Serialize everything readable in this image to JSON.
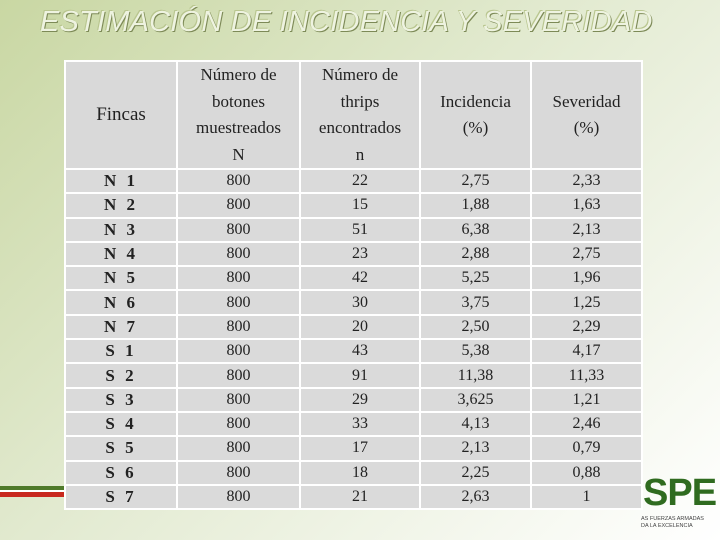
{
  "slide": {
    "title": "ESTIMACIÓN DE INCIDENCIA Y SEVERIDAD"
  },
  "table": {
    "headers": [
      [
        "Fincas"
      ],
      [
        "Número de",
        "botones",
        "muestreados",
        "N"
      ],
      [
        "Número de",
        "thrips",
        "encontrados",
        "n"
      ],
      [
        "Incidencia",
        "(%)"
      ],
      [
        "Severidad",
        "(%)"
      ]
    ],
    "rows": [
      [
        "N 1",
        "800",
        "22",
        "2,75",
        "2,33"
      ],
      [
        "N 2",
        "800",
        "15",
        "1,88",
        "1,63"
      ],
      [
        "N 3",
        "800",
        "51",
        "6,38",
        "2,13"
      ],
      [
        "N 4",
        "800",
        "23",
        "2,88",
        "2,75"
      ],
      [
        "N 5",
        "800",
        "42",
        "5,25",
        "1,96"
      ],
      [
        "N 6",
        "800",
        "30",
        "3,75",
        "1,25"
      ],
      [
        "N 7",
        "800",
        "20",
        "2,50",
        "2,29"
      ],
      [
        "S 1",
        "800",
        "43",
        "5,38",
        "4,17"
      ],
      [
        "S 2",
        "800",
        "91",
        "11,38",
        "11,33"
      ],
      [
        "S 3",
        "800",
        "29",
        "3,625",
        "1,21"
      ],
      [
        "S 4",
        "800",
        "33",
        "4,13",
        "2,46"
      ],
      [
        "S 5",
        "800",
        "17",
        "2,13",
        "0,79"
      ],
      [
        "S 6",
        "800",
        "18",
        "2,25",
        "0,88"
      ],
      [
        "S 7",
        "800",
        "21",
        "2,63",
        "1"
      ]
    ]
  },
  "logo": {
    "letters": "SPE",
    "sub_line1": "AS FUERZAS ARMADAS",
    "sub_line2": "DA LA EXCELENCIA",
    "colors": {
      "green": "#2f6b1f",
      "red": "#c8281e"
    }
  }
}
